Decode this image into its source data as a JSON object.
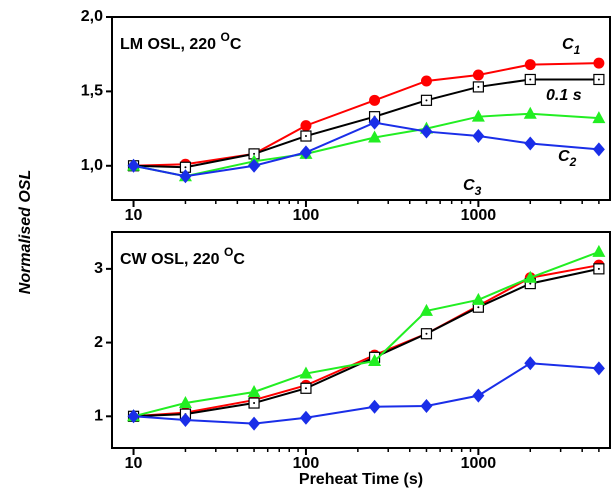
{
  "chart_data": [
    {
      "type": "line",
      "title": {
        "text": "LM OSL, 220 ",
        "sup": "O",
        "after": "C"
      },
      "ylabel": "Normalised OSL",
      "x": [
        10,
        20,
        50,
        100,
        250,
        500,
        1000,
        2000,
        5000
      ],
      "xlim": [
        7.5,
        5800
      ],
      "xscale": "log",
      "xticks": [
        10,
        100,
        1000
      ],
      "xminorticks": [
        20,
        30,
        40,
        50,
        60,
        70,
        80,
        90,
        200,
        300,
        400,
        500,
        600,
        700,
        800,
        900,
        2000,
        3000,
        4000,
        5000
      ],
      "ylim": [
        0.77,
        2.0
      ],
      "yticks": [
        {
          "value": 1.0,
          "label": "1,0"
        },
        {
          "value": 1.5,
          "label": "1,5"
        },
        {
          "value": 2.0,
          "label": "2,0"
        }
      ],
      "series": [
        {
          "color": "#ff0000",
          "marker": "circle",
          "values": [
            1.0,
            1.01,
            1.08,
            1.27,
            1.44,
            1.57,
            1.61,
            1.68,
            1.69
          ]
        },
        {
          "color": "#000000",
          "marker": "square",
          "values": [
            1.0,
            0.99,
            1.08,
            1.2,
            1.33,
            1.44,
            1.53,
            1.58,
            1.58
          ]
        },
        {
          "color": "#22ee22",
          "marker": "triangle",
          "values": [
            1.0,
            0.93,
            1.03,
            1.08,
            1.19,
            1.25,
            1.33,
            1.35,
            1.32
          ]
        },
        {
          "color": "#1a2ee8",
          "marker": "diamond",
          "values": [
            1.0,
            0.93,
            1.0,
            1.09,
            1.29,
            1.23,
            1.2,
            1.15,
            1.11
          ]
        }
      ],
      "annotations": [
        {
          "text": "C",
          "sub": "1",
          "color": "#ff0000"
        },
        {
          "text": "0.1 s",
          "color": "#000000"
        },
        {
          "text": "C",
          "sub": "2",
          "color": "#22ee22"
        },
        {
          "text": "C",
          "sub": "3",
          "color": "#1a2ee8"
        }
      ]
    },
    {
      "type": "line",
      "title": {
        "text": "CW OSL, 220 ",
        "sup": "O",
        "after": "C"
      },
      "xlabel": "Preheat Time (s)",
      "x": [
        10,
        20,
        50,
        100,
        250,
        500,
        1000,
        2000,
        5000
      ],
      "xlim": [
        7.5,
        5800
      ],
      "xscale": "log",
      "xticks": [
        10,
        100,
        1000
      ],
      "xminorticks": [
        20,
        30,
        40,
        50,
        60,
        70,
        80,
        90,
        200,
        300,
        400,
        500,
        600,
        700,
        800,
        900,
        2000,
        3000,
        4000,
        5000
      ],
      "ylim": [
        0.57,
        3.5
      ],
      "yticks": [
        1,
        2,
        3
      ],
      "series": [
        {
          "color": "#ff0000",
          "marker": "circle",
          "values": [
            1.0,
            1.05,
            1.22,
            1.42,
            1.83,
            2.12,
            2.5,
            2.88,
            3.05
          ]
        },
        {
          "color": "#000000",
          "marker": "square",
          "values": [
            1.0,
            1.03,
            1.18,
            1.38,
            1.8,
            2.12,
            2.48,
            2.8,
            3.0
          ]
        },
        {
          "color": "#22ee22",
          "marker": "triangle",
          "values": [
            1.0,
            1.18,
            1.33,
            1.58,
            1.75,
            2.43,
            2.58,
            2.88,
            3.23
          ]
        },
        {
          "color": "#1a2ee8",
          "marker": "diamond",
          "values": [
            1.0,
            0.95,
            0.9,
            0.98,
            1.13,
            1.14,
            1.28,
            1.72,
            1.65
          ]
        }
      ]
    }
  ]
}
